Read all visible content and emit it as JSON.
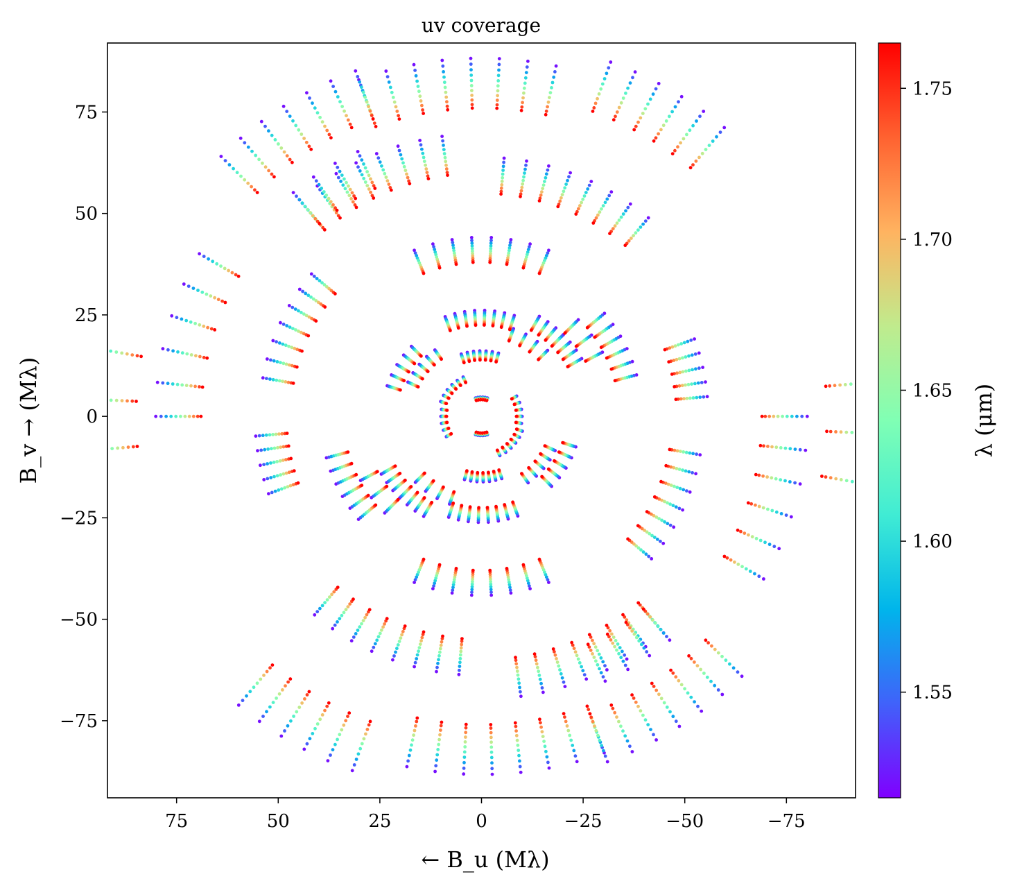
{
  "chart_data": {
    "type": "scatter",
    "title": "uv coverage",
    "xlabel": "← B_u (Mλ)",
    "ylabel": "B_v → (Mλ)",
    "xlim": [
      92,
      -92
    ],
    "ylim": [
      -94,
      92
    ],
    "x_ticks": [
      75,
      50,
      25,
      0,
      -25,
      -50,
      -75
    ],
    "x_tick_labels": [
      "75",
      "50",
      "25",
      "0",
      "−25",
      "−50",
      "−75"
    ],
    "y_ticks": [
      75,
      50,
      25,
      0,
      -25,
      -50,
      -75
    ],
    "y_tick_labels": [
      "75",
      "50",
      "25",
      "0",
      "−25",
      "−50",
      "−75"
    ],
    "grid": false,
    "colorbar": {
      "label": "λ (μm)",
      "colormap": "rainbow",
      "range": [
        1.515,
        1.765
      ],
      "ticks": [
        1.55,
        1.6,
        1.65,
        1.7,
        1.75
      ],
      "tick_labels": [
        "1.55",
        "1.60",
        "1.65",
        "1.70",
        "1.75"
      ]
    },
    "wavelength_channels": [
      1.52,
      1.545,
      1.57,
      1.595,
      1.62,
      1.645,
      1.67,
      1.695,
      1.72,
      1.745,
      1.765
    ],
    "baseline_tracks": [
      {
        "r": 4.1,
        "pa_start": -18,
        "pa_end": 18,
        "n": 6
      },
      {
        "r": 8.6,
        "pa_start": -100,
        "pa_end": -60,
        "n": 5
      },
      {
        "r": 9.2,
        "pa_start": 25,
        "pa_end": 70,
        "n": 6
      },
      {
        "r": 13.9,
        "pa_start": -15,
        "pa_end": 18,
        "n": 7
      },
      {
        "r": 17.2,
        "pa_start": 35,
        "pa_end": 65,
        "n": 5
      },
      {
        "r": 19.8,
        "pa_start": -45,
        "pa_end": -20,
        "n": 4
      },
      {
        "r": 21.0,
        "pa_start": 45,
        "pa_end": 72,
        "n": 5
      },
      {
        "r": 22.5,
        "pa_start": -18,
        "pa_end": 20,
        "n": 8
      },
      {
        "r": 24.5,
        "pa_start": -60,
        "pa_end": -30,
        "n": 7
      },
      {
        "r": 29.0,
        "pa_start": 118,
        "pa_end": 135,
        "n": 3
      },
      {
        "r": 34.0,
        "pa_start": -75,
        "pa_end": -50,
        "n": 6
      },
      {
        "r": 38.0,
        "pa_start": -22,
        "pa_end": 22,
        "n": 8
      },
      {
        "r": 47.0,
        "pa_start": 50,
        "pa_end": 80,
        "n": 7
      },
      {
        "r": 48.0,
        "pa_start": -85,
        "pa_end": -70,
        "n": 5
      },
      {
        "r": 55.0,
        "pa_start": -40,
        "pa_end": -5,
        "n": 8
      },
      {
        "r": 60.0,
        "pa_start": 8,
        "pa_end": 40,
        "n": 8
      },
      {
        "r": 62.0,
        "pa_start": 25,
        "pa_end": 40,
        "n": 4
      },
      {
        "r": 69.0,
        "pa_start": 60,
        "pa_end": 90,
        "n": 6
      },
      {
        "r": 76.0,
        "pa_start": -12,
        "pa_end": 20,
        "n": 8
      },
      {
        "r": 78.0,
        "pa_start": 20,
        "pa_end": 45,
        "n": 7
      },
      {
        "r": 80.0,
        "pa_start": -40,
        "pa_end": -20,
        "n": 6
      },
      {
        "r": 85.0,
        "pa_start": 80,
        "pa_end": 95,
        "n": 3
      }
    ]
  }
}
